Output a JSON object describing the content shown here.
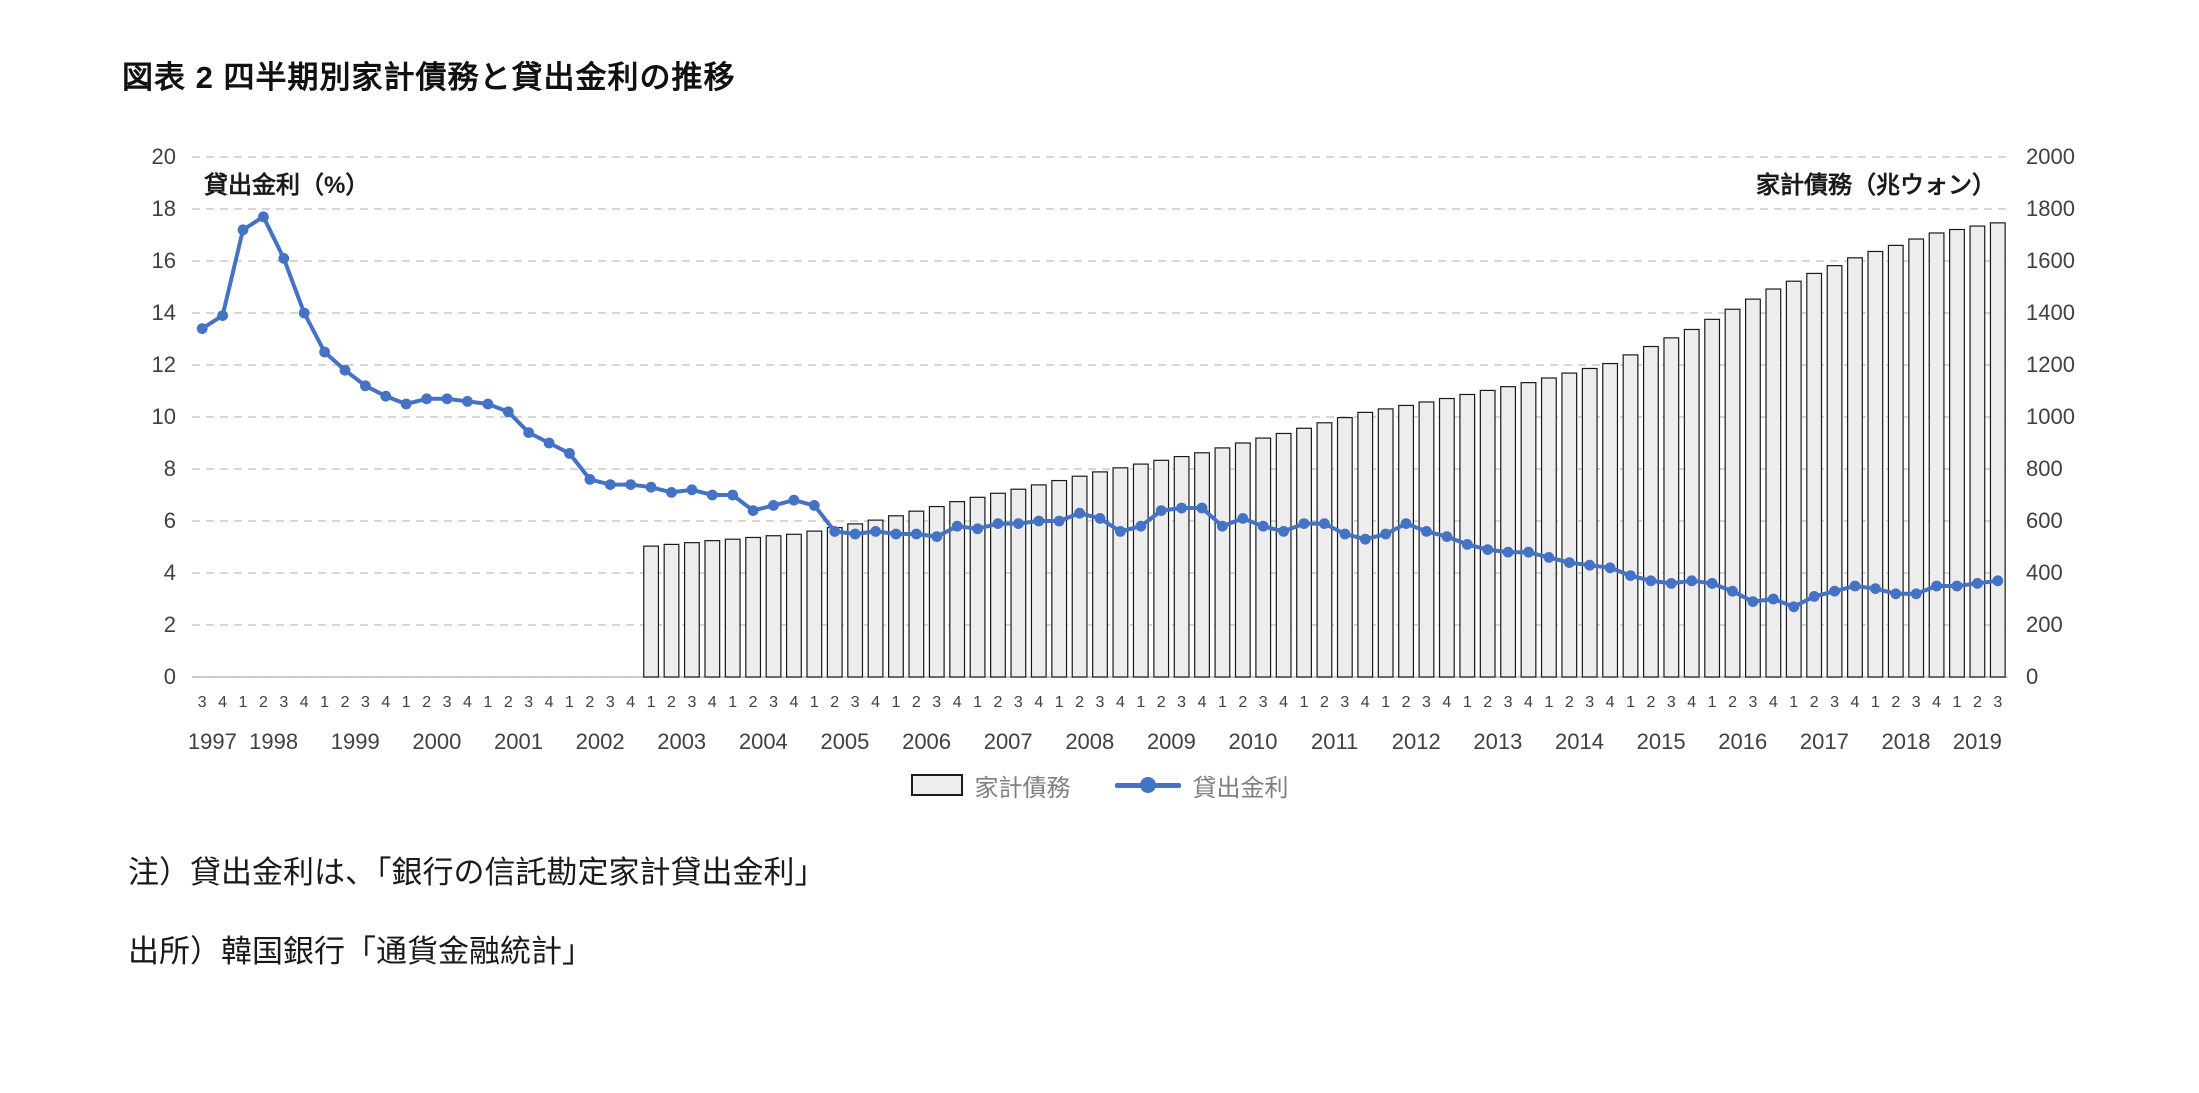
{
  "page": {
    "title": "図表 2 四半期別家計債務と貸出金利の推移",
    "note1": "注）貸出金利は、「銀行の信託勘定家計貸出金利」",
    "note2": "出所）韓国銀行「通貨金融統計」"
  },
  "legend": {
    "debt_label": "家計債務",
    "rate_label": "貸出金利"
  },
  "chart_data": {
    "type": "bar+line",
    "grid_color": "#c9c9c9",
    "axis_text_color": "#404040",
    "left_axis": {
      "label": "貸出金利（%）",
      "min": 0,
      "max": 20,
      "step": 2
    },
    "right_axis": {
      "label": "家計債務（兆ウォン）",
      "min": 0,
      "max": 1800,
      "step": 200
    },
    "year_groups": [
      {
        "year": "1997",
        "count": 2
      },
      {
        "year": "1998",
        "count": 4
      },
      {
        "year": "1999",
        "count": 4
      },
      {
        "year": "2000",
        "count": 4
      },
      {
        "year": "2001",
        "count": 4
      },
      {
        "year": "2002",
        "count": 4
      },
      {
        "year": "2003",
        "count": 4
      },
      {
        "year": "2004",
        "count": 4
      },
      {
        "year": "2005",
        "count": 4
      },
      {
        "year": "2006",
        "count": 4
      },
      {
        "year": "2007",
        "count": 4
      },
      {
        "year": "2008",
        "count": 4
      },
      {
        "year": "2009",
        "count": 4
      },
      {
        "year": "2010",
        "count": 4
      },
      {
        "year": "2011",
        "count": 4
      },
      {
        "year": "2012",
        "count": 4
      },
      {
        "year": "2013",
        "count": 4
      },
      {
        "year": "2014",
        "count": 4
      },
      {
        "year": "2015",
        "count": 4
      },
      {
        "year": "2016",
        "count": 4
      },
      {
        "year": "2017",
        "count": 4
      },
      {
        "year": "2018",
        "count": 4
      },
      {
        "year": "2019",
        "count": 3
      }
    ],
    "quarter_labels": [
      "3",
      "4",
      "1",
      "2",
      "3",
      "4",
      "1",
      "2",
      "3",
      "4",
      "1",
      "2",
      "3",
      "4",
      "1",
      "2",
      "3",
      "4",
      "1",
      "2",
      "3",
      "4",
      "1",
      "2",
      "3",
      "4",
      "1",
      "2",
      "3",
      "4",
      "1",
      "2",
      "3",
      "4",
      "1",
      "2",
      "3",
      "4",
      "1",
      "2",
      "3",
      "4",
      "1",
      "2",
      "3",
      "4",
      "1",
      "2",
      "3",
      "4",
      "1",
      "2",
      "3",
      "4",
      "1",
      "2",
      "3",
      "4",
      "1",
      "2",
      "3",
      "4",
      "1",
      "2",
      "3",
      "4",
      "1",
      "2",
      "3",
      "4",
      "1",
      "2",
      "3",
      "4",
      "1",
      "2",
      "3",
      "4",
      "1",
      "2",
      "3",
      "4",
      "1",
      "2",
      "3",
      "4",
      "1",
      "2",
      "3"
    ],
    "series": [
      {
        "name": "家計債務",
        "type": "bar",
        "axis": "right",
        "start_index": 22,
        "fill": "#ededed",
        "stroke": "#1a1a1a",
        "values": [
          453,
          459,
          465,
          472,
          477,
          483,
          489,
          494,
          505,
          517,
          530,
          543,
          558,
          574,
          590,
          607,
          622,
          636,
          650,
          665,
          680,
          695,
          710,
          724,
          737,
          750,
          763,
          776,
          793,
          810,
          827,
          843,
          861,
          880,
          898,
          916,
          928,
          940,
          952,
          964,
          978,
          992,
          1005,
          1019,
          1035,
          1052,
          1068,
          1085,
          1115,
          1144,
          1174,
          1203,
          1238,
          1273,
          1308,
          1343,
          1370,
          1397,
          1424,
          1451,
          1473,
          1494,
          1516,
          1537,
          1549,
          1561,
          1572
        ]
      },
      {
        "name": "貸出金利",
        "type": "line",
        "axis": "left",
        "start_index": 0,
        "color": "#4472c4",
        "values": [
          13.4,
          13.9,
          17.2,
          17.7,
          16.1,
          14.0,
          12.5,
          11.8,
          11.2,
          10.8,
          10.5,
          10.7,
          10.7,
          10.6,
          10.5,
          10.2,
          9.4,
          9.0,
          8.6,
          7.6,
          7.4,
          7.4,
          7.3,
          7.1,
          7.2,
          7.0,
          7.0,
          6.4,
          6.6,
          6.8,
          6.6,
          5.6,
          5.5,
          5.6,
          5.5,
          5.5,
          5.4,
          5.8,
          5.7,
          5.9,
          5.9,
          6.0,
          6.0,
          6.3,
          6.1,
          5.6,
          5.8,
          6.4,
          6.5,
          6.5,
          5.8,
          6.1,
          5.8,
          5.6,
          5.9,
          5.9,
          5.5,
          5.3,
          5.5,
          5.9,
          5.6,
          5.4,
          5.1,
          4.9,
          4.8,
          4.8,
          4.6,
          4.4,
          4.3,
          4.2,
          3.9,
          3.7,
          3.6,
          3.7,
          3.6,
          3.3,
          2.9,
          3.0,
          2.7,
          3.1,
          3.3,
          3.5,
          3.4,
          3.2,
          3.2,
          3.5,
          3.5,
          3.6,
          3.7
        ]
      }
    ]
  }
}
